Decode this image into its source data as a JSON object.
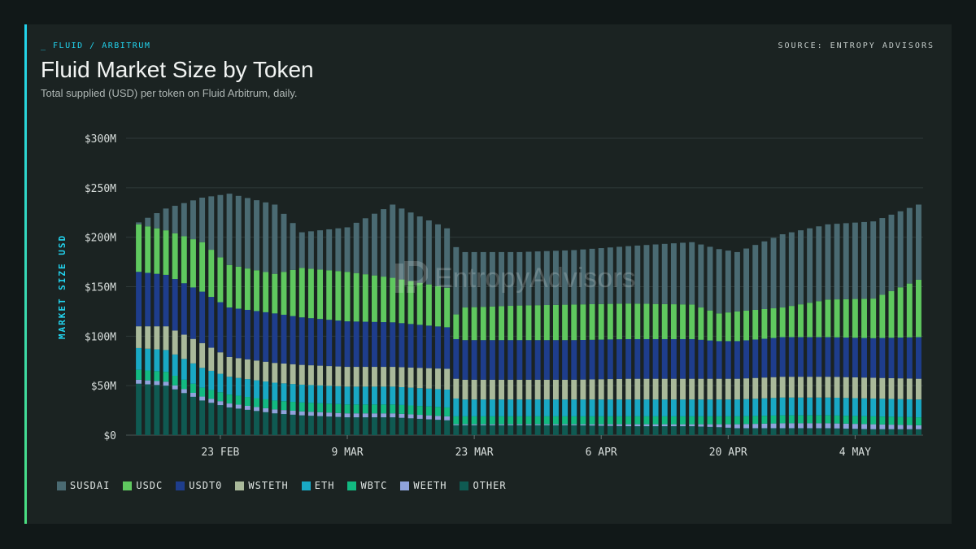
{
  "header": {
    "breadcrumb": "_ FLUID / ARBITRUM",
    "source": "SOURCE: ENTROPY ADVISORS",
    "title": "Fluid Market Size by Token",
    "subtitle": "Total supplied (USD) per token on Fluid Arbitrum, daily."
  },
  "watermark": {
    "text": "EntropyAdvisors",
    "icon": "entropy-logo-icon"
  },
  "colors": {
    "SUSDAI": "#4a6a72",
    "USDC": "#5fc85f",
    "USDT0": "#1e3d8c",
    "WSTETH": "#a9b99a",
    "ETH": "#19a8c4",
    "WBTC": "#12b981",
    "WEETH": "#8fa3dc",
    "OTHER": "#0f5a52"
  },
  "chart_data": {
    "type": "bar",
    "stacked": true,
    "title": "Fluid Market Size by Token",
    "subtitle": "Total supplied (USD) per token on Fluid Arbitrum, daily.",
    "ylabel": "MARKET SIZE USD",
    "ylim": [
      0,
      300
    ],
    "y_unit": "USD millions",
    "y_ticks": [
      "$0",
      "$50M",
      "$100M",
      "$150M",
      "$200M",
      "$250M",
      "$300M"
    ],
    "x_ticks": [
      "23 FEB",
      "9 MAR",
      "23 MAR",
      "6 APR",
      "20 APR",
      "4 MAY"
    ],
    "x_tick_dates": [
      "2025-02-23",
      "2025-03-09",
      "2025-03-23",
      "2025-04-06",
      "2025-04-20",
      "2025-05-04"
    ],
    "x_start": "2025-02-14",
    "x_end": "2025-05-11",
    "grid": true,
    "legend_position": "bottom-left",
    "series_order_bottom_to_top": [
      "OTHER",
      "WEETH",
      "WBTC",
      "ETH",
      "WSTETH",
      "USDT0",
      "USDC",
      "SUSDAI"
    ],
    "legend": [
      "SUSDAI",
      "USDC",
      "USDT0",
      "WSTETH",
      "ETH",
      "WBTC",
      "WEETH",
      "OTHER"
    ],
    "anchor_dates": [
      "2025-02-14",
      "2025-02-17",
      "2025-02-21",
      "2025-02-24",
      "2025-03-01",
      "2025-03-04",
      "2025-03-09",
      "2025-03-14",
      "2025-03-20",
      "2025-03-21",
      "2025-03-22",
      "2025-03-28",
      "2025-04-03",
      "2025-04-09",
      "2025-04-16",
      "2025-04-19",
      "2025-04-21",
      "2025-04-26",
      "2025-05-01",
      "2025-05-06",
      "2025-05-11"
    ],
    "series": [
      {
        "name": "OTHER",
        "values": [
          52,
          50,
          35,
          28,
          22,
          20,
          18,
          18,
          15,
          10,
          10,
          10,
          10,
          9,
          9,
          8,
          7,
          7,
          7,
          6,
          6
        ]
      },
      {
        "name": "WEETH",
        "values": [
          4,
          4,
          4,
          4,
          4,
          4,
          4,
          4,
          4,
          1,
          1,
          1,
          1,
          2,
          2,
          3,
          4,
          5,
          5,
          5,
          4
        ]
      },
      {
        "name": "WBTC",
        "values": [
          10,
          10,
          9,
          9,
          9,
          9,
          9,
          9,
          9,
          8,
          8,
          8,
          8,
          8,
          8,
          8,
          8,
          8,
          8,
          8,
          8
        ]
      },
      {
        "name": "ETH",
        "values": [
          22,
          22,
          20,
          18,
          18,
          18,
          18,
          18,
          18,
          18,
          17,
          17,
          17,
          17,
          17,
          17,
          17,
          18,
          18,
          18,
          18
        ]
      },
      {
        "name": "WSTETH",
        "values": [
          22,
          24,
          25,
          20,
          20,
          20,
          20,
          20,
          21,
          20,
          20,
          20,
          20,
          21,
          21,
          21,
          21,
          21,
          21,
          21,
          21
        ]
      },
      {
        "name": "USDT0",
        "values": [
          55,
          52,
          52,
          50,
          50,
          48,
          46,
          45,
          42,
          40,
          40,
          40,
          40,
          40,
          40,
          38,
          38,
          40,
          40,
          40,
          42
        ]
      },
      {
        "name": "USDC",
        "values": [
          48,
          45,
          50,
          43,
          40,
          50,
          50,
          45,
          40,
          25,
          33,
          35,
          36,
          36,
          35,
          28,
          30,
          30,
          38,
          40,
          58
        ]
      },
      {
        "name": "SUSDAI",
        "values": [
          2,
          22,
          45,
          72,
          70,
          36,
          45,
          74,
          60,
          68,
          56,
          54,
          55,
          58,
          63,
          65,
          60,
          74,
          76,
          78,
          76
        ]
      }
    ],
    "interpolation": "linear-daily"
  }
}
